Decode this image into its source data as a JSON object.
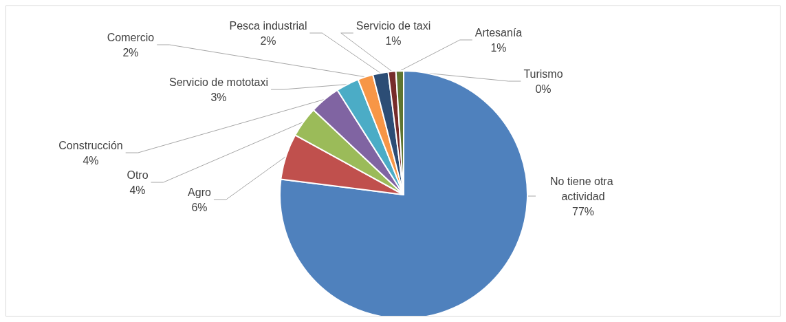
{
  "chart_data": {
    "type": "pie",
    "categories": [
      "No tiene otra actividad",
      "Agro",
      "Otro",
      "Construcción",
      "Servicio de mototaxi",
      "Comercio",
      "Pesca industrial",
      "Servicio de taxi",
      "Artesanía",
      "Turismo"
    ],
    "values": [
      77,
      6,
      4,
      4,
      3,
      2,
      2,
      1,
      1,
      0
    ],
    "value_labels": [
      "77%",
      "6%",
      "4%",
      "4%",
      "3%",
      "2%",
      "2%",
      "1%",
      "1%",
      "0%"
    ],
    "colors": [
      "#4f81bd",
      "#c0504d",
      "#9bbb59",
      "#8064a2",
      "#4bacc6",
      "#f79646",
      "#2c4d75",
      "#772c2a",
      "#5f7530",
      "#4d3b62"
    ],
    "legend": false
  }
}
